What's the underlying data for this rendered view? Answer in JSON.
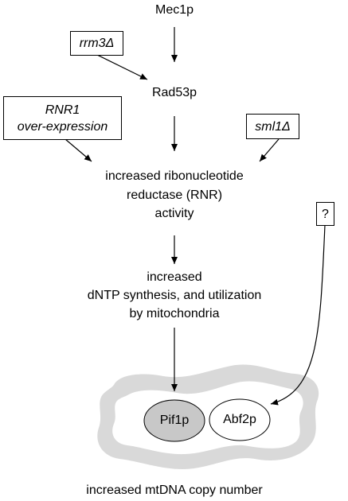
{
  "nodes": {
    "mec1p": "Mec1p",
    "rrm3": "rrm3Δ",
    "rad53p": "Rad53p",
    "rnr1_line1": "RNR1",
    "rnr1_line2": "over-expression",
    "sml1": "sml1Δ",
    "rnr_line1": "increased ribonucleotide",
    "rnr_line2": "reductase (RNR)",
    "rnr_line3": "activity",
    "question": "?",
    "dntp_line1": "increased",
    "dntp_line2": "dNTP synthesis, and utilization",
    "dntp_line3": "by mitochondria",
    "pif1p": "Pif1p",
    "abf2p": "Abf2p",
    "result": "increased mtDNA copy number"
  },
  "colors": {
    "mitochondrion_fill": "#d9d9d9",
    "mitochondrion_inner": "#ffffff",
    "pif1p_fill": "#c8c8c8",
    "abf2p_fill": "#ffffff",
    "line": "#000000"
  }
}
